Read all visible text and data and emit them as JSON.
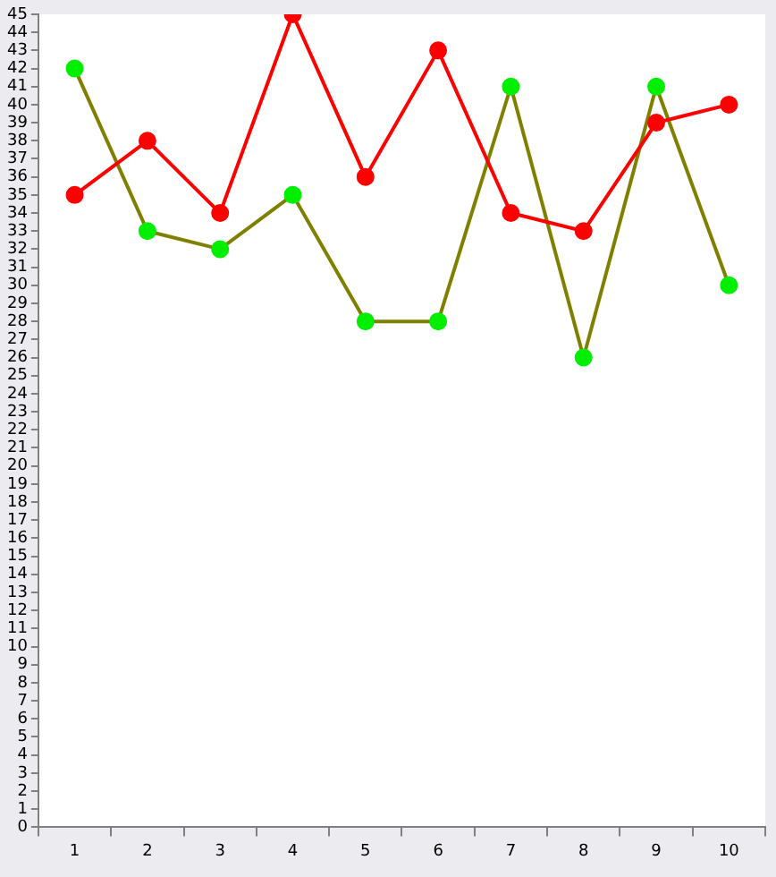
{
  "chart_data": {
    "type": "line",
    "categories": [
      "1",
      "2",
      "3",
      "4",
      "5",
      "6",
      "7",
      "8",
      "9",
      "10"
    ],
    "series": [
      {
        "color": "#ff0000",
        "colors": [
          "#ff0000",
          "#ff0000",
          "#ff0000",
          "#ff0000",
          "#ff0000",
          "#ff0000",
          "#ff0000",
          "#ff0000",
          "#ff0000",
          "#ff0000"
        ],
        "values": [
          35,
          38,
          34,
          45,
          36,
          43,
          34,
          33,
          39,
          40
        ]
      },
      {
        "color": "#808000",
        "colors": [
          "#00ee00",
          "#00ee00",
          "#00ee00",
          "#00ee00",
          "#00ee00",
          "#00ee00",
          "#00ee00",
          "#00ee00",
          "#00ee00",
          "#00ee00"
        ],
        "values": [
          42,
          33,
          32,
          35,
          28,
          28,
          41,
          26,
          41,
          30
        ]
      }
    ],
    "ylim": [
      0,
      45
    ],
    "yticks": [
      0,
      1,
      2,
      3,
      4,
      5,
      6,
      7,
      8,
      9,
      10,
      11,
      12,
      13,
      14,
      15,
      16,
      17,
      18,
      19,
      20,
      21,
      22,
      23,
      24,
      25,
      26,
      27,
      28,
      29,
      30,
      31,
      32,
      33,
      34,
      35,
      36,
      37,
      38,
      39,
      40,
      41,
      42,
      43,
      44,
      45
    ],
    "grid": false,
    "legend": false,
    "marker": "circle",
    "line_style": "solid"
  }
}
